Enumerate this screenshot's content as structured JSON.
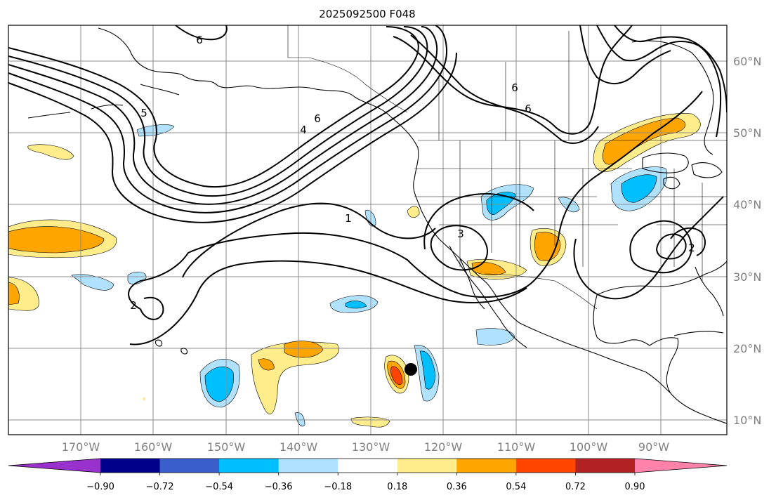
{
  "title": "2025092500 F048",
  "map": {
    "projection": "PlateCarree",
    "lon_range": [
      -180,
      -80
    ],
    "lat_range": [
      8,
      65
    ],
    "lat_labels": [
      "10°N",
      "20°N",
      "30°N",
      "40°N",
      "50°N",
      "60°N"
    ],
    "lon_labels": [
      "170°W",
      "160°W",
      "150°W",
      "140°W",
      "130°W",
      "120°W",
      "110°W",
      "100°W",
      "90°W"
    ],
    "grid": true,
    "contour_labels": [
      "6",
      "6",
      "4",
      "6",
      "1",
      "3",
      "6",
      "5",
      "2",
      "2"
    ],
    "marker": {
      "name": "storm-center-dot",
      "lon": -125.5,
      "lat": 17
    }
  },
  "colorbar": {
    "tick_labels": [
      "−0.90",
      "−0.72",
      "−0.54",
      "−0.36",
      "−0.18",
      "0.18",
      "0.36",
      "0.54",
      "0.72",
      "0.90"
    ],
    "colors": [
      "#9932cc",
      "#00008b",
      "#3a5fcd",
      "#00bfff",
      "#b0e2ff",
      "#ffffff",
      "#ffec8b",
      "#ffa500",
      "#ff4500",
      "#b22222",
      "#ff82ab"
    ],
    "extend": "both"
  },
  "colors": {
    "grid": "#8c8c8c",
    "coast": "#000000",
    "label_gray": "#808080"
  }
}
